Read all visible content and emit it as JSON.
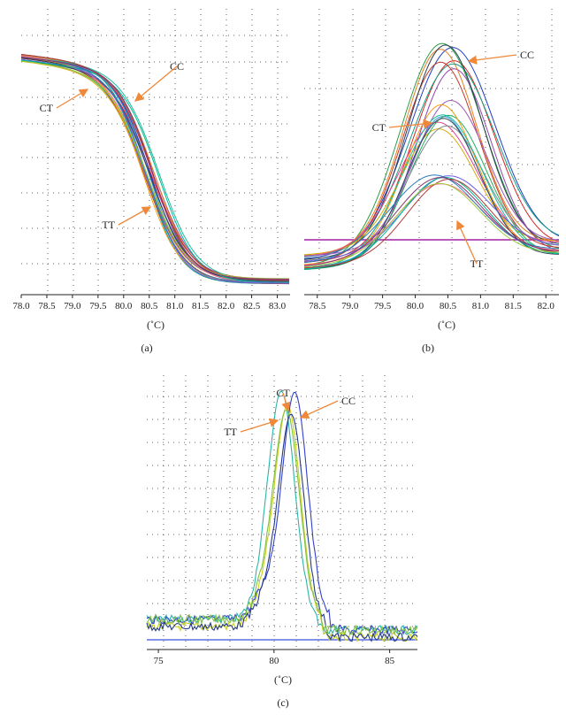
{
  "chart_data": [
    {
      "panel_label": "(a)",
      "type": "line",
      "xlabel": "(˚C)",
      "x_ticks": [
        "78.0",
        "78.5",
        "79.0",
        "79.5",
        "80.0",
        "80.5",
        "81.0",
        "81.5",
        "82.0",
        "82.5",
        "83.0"
      ],
      "xlim": [
        78.0,
        83.25
      ],
      "annotations": [
        {
          "text": "CC",
          "x": 80.4
        },
        {
          "text": "CT",
          "x": 79.6
        },
        {
          "text": "TT",
          "x": 80.6
        }
      ],
      "grid": true,
      "series_count": 24,
      "curve_shape": "melting curve: high plateau at low temperature, sharp drop between 80.0 and 81.5, low plateau above 82.0"
    },
    {
      "panel_label": "(b)",
      "type": "line",
      "xlabel": "(˚C)",
      "x_ticks": [
        "78.5",
        "79.0",
        "79.5",
        "80.0",
        "80.5",
        "81.0",
        "81.5",
        "82.0"
      ],
      "xlim": [
        78.3,
        82.2
      ],
      "annotations": [
        {
          "text": "CC",
          "x": 80.55
        },
        {
          "text": "CT",
          "x": 80.4
        },
        {
          "text": "TT",
          "x": 80.6
        }
      ],
      "grid": true,
      "threshold_line": true,
      "peak_x": 80.5,
      "series_count": 24,
      "curve_shape": "derivative melting peaks centred near 80.5; CC highest, CT middle, TT lowest"
    },
    {
      "panel_label": "(c)",
      "type": "line",
      "xlabel": "(˚C)",
      "x_ticks": [
        "75",
        "80",
        "85"
      ],
      "xlim": [
        74.5,
        86.2
      ],
      "annotations": [
        {
          "text": "CT",
          "x": 80.3
        },
        {
          "text": "TT",
          "x": 80.5
        },
        {
          "text": "CC",
          "x": 81.0
        }
      ],
      "grid": true,
      "threshold_line": true,
      "peaks": [
        {
          "label": "TT",
          "x": 80.35,
          "color": "#2bb5a8"
        },
        {
          "label": "CT",
          "x": 80.6,
          "color": "#c8d020"
        },
        {
          "label": "CC",
          "x": 80.9,
          "color": "#3340c8"
        }
      ],
      "curve_shape": "narrow derivative peaks around 80.3-81.0 with noisy baseline"
    }
  ],
  "colors": {
    "annotation_arrow": "#f0883a",
    "threshold": "#a020a0",
    "threshold_c": "#3a50e0"
  }
}
